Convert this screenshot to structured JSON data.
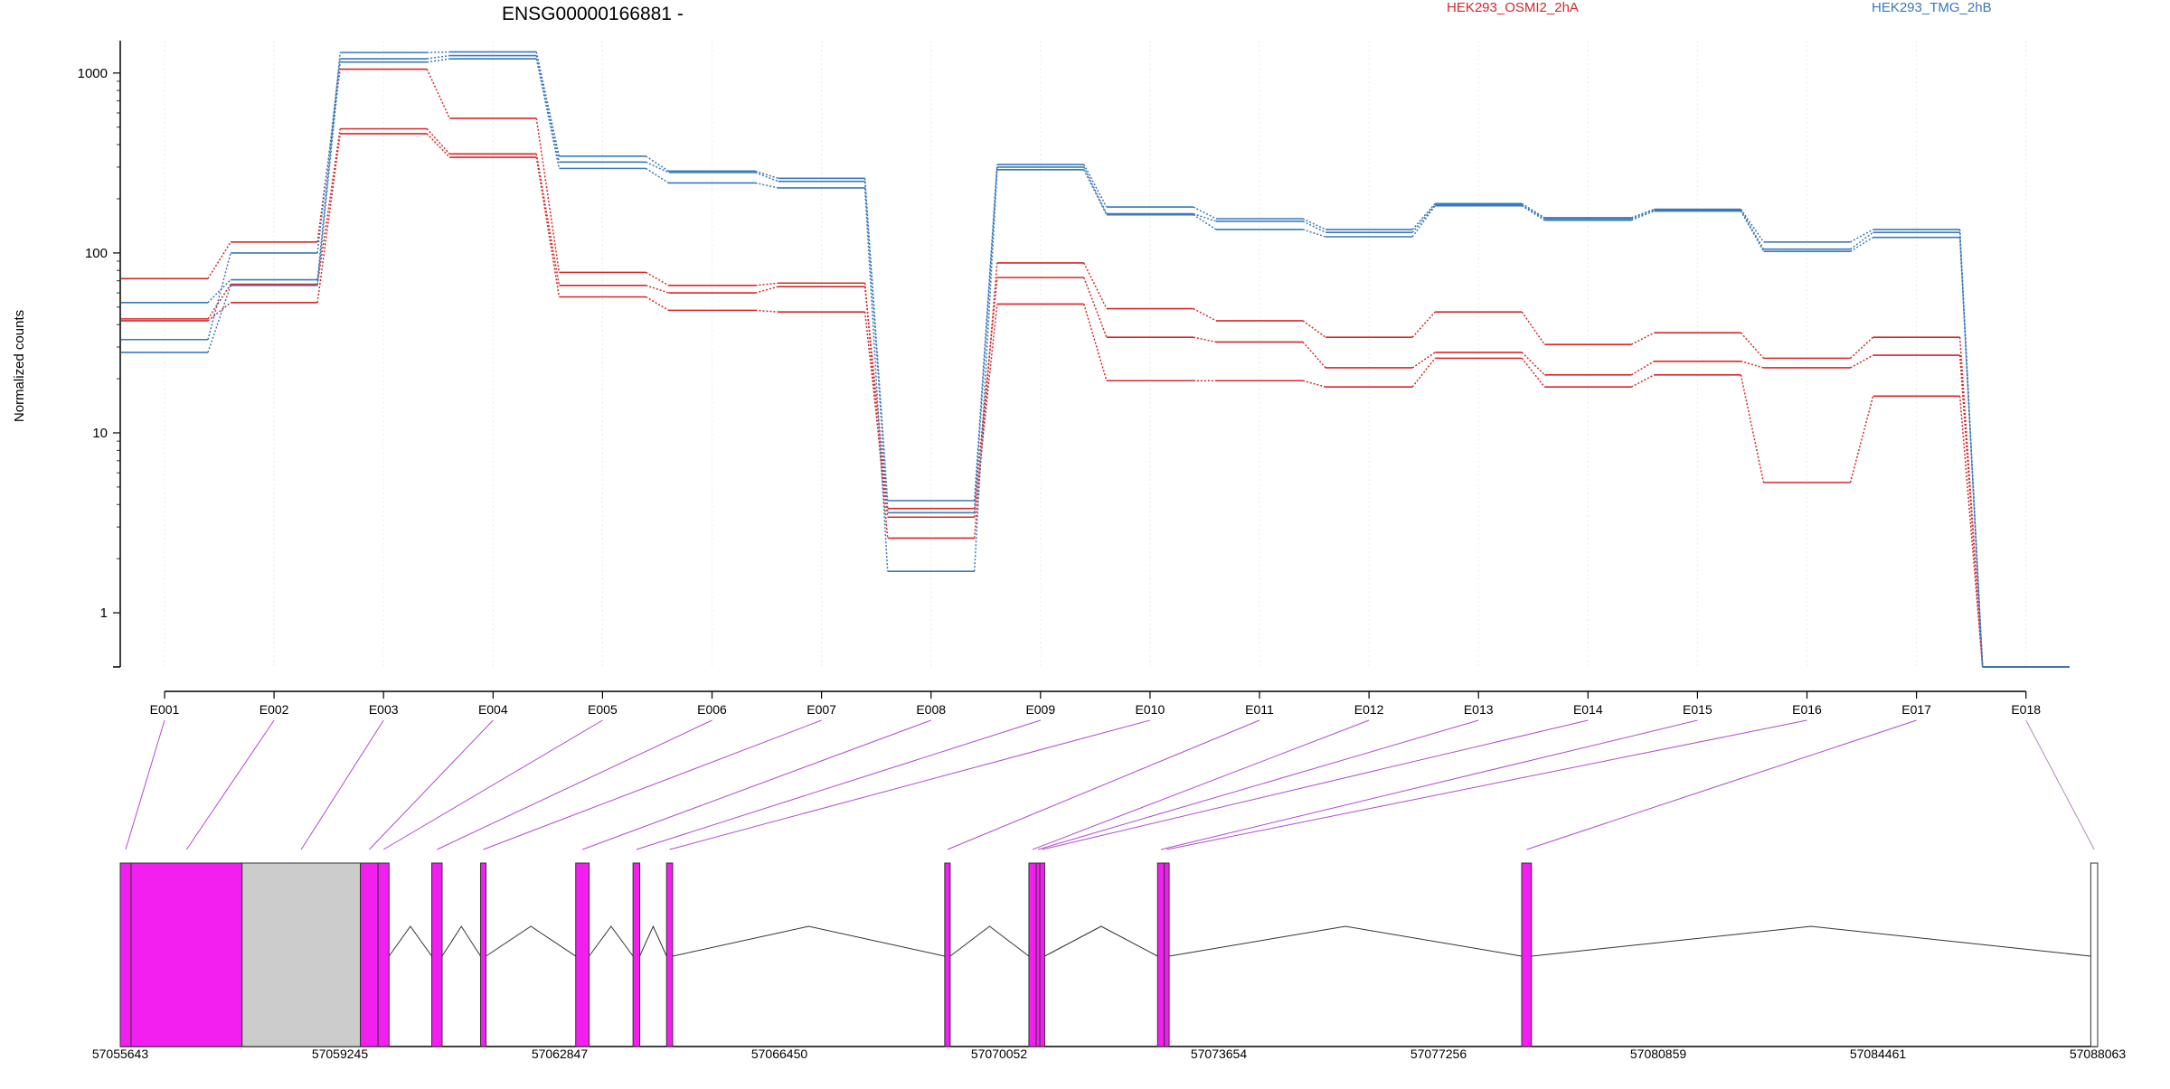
{
  "chart_data": {
    "type": "line",
    "title": "ENSG00000166881 -",
    "ylabel": "Normalized counts",
    "y_scale": "log",
    "ylim": [
      0.5,
      1800
    ],
    "y_ticks": [
      1,
      10,
      100,
      1000
    ],
    "y_tick_labels": [
      "1",
      "10",
      "100",
      "1000"
    ],
    "categories": [
      "E001",
      "E002",
      "E003",
      "E004",
      "E005",
      "E006",
      "E007",
      "E008",
      "E009",
      "E010",
      "E011",
      "E012",
      "E013",
      "E014",
      "E015",
      "E016",
      "E017",
      "E018"
    ],
    "legend": [
      {
        "name": "HEK293_OSMI2_2hA",
        "color": "#d62728"
      },
      {
        "name": "HEK293_TMG_2hB",
        "color": "#3a78b8"
      }
    ],
    "series": [
      {
        "group": "HEK293_OSMI2_2hA",
        "color": "#d62728",
        "values": [
          72,
          115,
          1050,
          560,
          78,
          66,
          68,
          2.6,
          88,
          49,
          42,
          34,
          47,
          31,
          36,
          26,
          34,
          0.5
        ]
      },
      {
        "group": "HEK293_OSMI2_2hA",
        "color": "#d62728",
        "values": [
          43,
          67,
          490,
          355,
          66,
          60,
          65,
          3.8,
          73,
          34,
          32,
          23,
          28,
          21,
          25,
          23,
          27,
          0.5
        ]
      },
      {
        "group": "HEK293_OSMI2_2hA",
        "color": "#d62728",
        "values": [
          42,
          53,
          460,
          340,
          57,
          48,
          47,
          3.4,
          52,
          19.5,
          19.5,
          18,
          26,
          18,
          21,
          5.3,
          16,
          0.5
        ]
      },
      {
        "group": "HEK293_TMG_2hB",
        "color": "#3a78b8",
        "values": [
          53,
          71,
          1300,
          1310,
          345,
          285,
          260,
          4.2,
          310,
          180,
          155,
          135,
          188,
          157,
          175,
          115,
          135,
          0.5
        ]
      },
      {
        "group": "HEK293_TMG_2hB",
        "color": "#3a78b8",
        "values": [
          33,
          100,
          1200,
          1250,
          320,
          280,
          250,
          3.6,
          300,
          165,
          150,
          130,
          185,
          155,
          173,
          105,
          130,
          0.5
        ]
      },
      {
        "group": "HEK293_TMG_2hB",
        "color": "#3a78b8",
        "values": [
          28,
          66,
          1150,
          1200,
          295,
          245,
          230,
          1.7,
          290,
          163,
          135,
          123,
          183,
          152,
          171,
          102,
          122,
          0.5
        ]
      }
    ],
    "gene_model": {
      "genomic_range": [
        57055643,
        57088063
      ],
      "position_ticks": [
        57055643,
        57059245,
        57062847,
        57066450,
        57070052,
        57073654,
        57077256,
        57080859,
        57084461,
        57088063
      ],
      "position_tick_labels": [
        "57055643",
        "57059245",
        "57062847",
        "57066450",
        "57070052",
        "57073654",
        "57077256",
        "57080859",
        "57084461",
        "57088063"
      ],
      "exons": [
        {
          "id": "E001",
          "start": 57055643,
          "end": 57055820,
          "type": "tested"
        },
        {
          "id": "E002",
          "start": 57055820,
          "end": 57057640,
          "type": "tested"
        },
        {
          "id": "E003",
          "start": 57057640,
          "end": 57059580,
          "type": "other"
        },
        {
          "id": "E004",
          "start": 57059580,
          "end": 57059870,
          "type": "tested"
        },
        {
          "id": "E005",
          "start": 57059870,
          "end": 57060050,
          "type": "tested"
        },
        {
          "id": "E006",
          "start": 57060750,
          "end": 57060920,
          "type": "tested"
        },
        {
          "id": "E007",
          "start": 57061550,
          "end": 57061640,
          "type": "tested"
        },
        {
          "id": "E008",
          "start": 57063110,
          "end": 57063330,
          "type": "tested"
        },
        {
          "id": "E009",
          "start": 57064050,
          "end": 57064160,
          "type": "tested"
        },
        {
          "id": "E010",
          "start": 57064600,
          "end": 57064700,
          "type": "tested"
        },
        {
          "id": "E011",
          "start": 57069160,
          "end": 57069250,
          "type": "tested"
        },
        {
          "id": "E012",
          "start": 57070540,
          "end": 57070660,
          "type": "tested"
        },
        {
          "id": "E013",
          "start": 57070660,
          "end": 57070720,
          "type": "tested"
        },
        {
          "id": "E014",
          "start": 57070720,
          "end": 57070800,
          "type": "tested"
        },
        {
          "id": "E015",
          "start": 57072650,
          "end": 57072760,
          "type": "tested"
        },
        {
          "id": "E016",
          "start": 57072760,
          "end": 57072840,
          "type": "tested"
        },
        {
          "id": "E017",
          "start": 57078620,
          "end": 57078780,
          "type": "tested"
        },
        {
          "id": "E018",
          "start": 57087950,
          "end": 57088063,
          "type": "untested"
        }
      ]
    }
  }
}
